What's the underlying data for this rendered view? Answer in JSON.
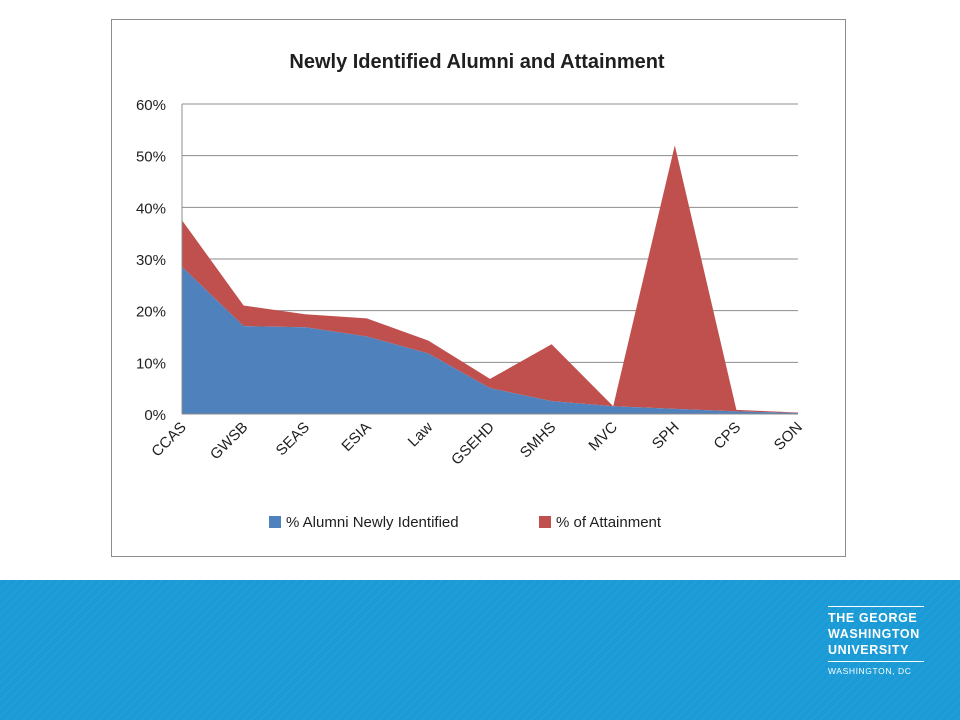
{
  "chart_data": {
    "type": "area",
    "title": "Newly Identified Alumni and Attainment",
    "xlabel": "",
    "ylabel": "",
    "categories": [
      "CCAS",
      "GWSB",
      "SEAS",
      "ESIA",
      "Law",
      "GSEHD",
      "SMHS",
      "MVC",
      "SPH",
      "CPS",
      "SON"
    ],
    "ylim": [
      0,
      60
    ],
    "yticks": [
      "0%",
      "10%",
      "20%",
      "30%",
      "40%",
      "50%",
      "60%"
    ],
    "stacked": true,
    "grid": true,
    "legend_position": "bottom",
    "series": [
      {
        "name": "% Alumni Newly Identified",
        "color": "#4f81bd",
        "values": [
          28.5,
          17.0,
          16.8,
          15.0,
          11.7,
          5.0,
          2.5,
          1.5,
          1.0,
          0.5,
          0.2
        ]
      },
      {
        "name": "% of Attainment",
        "color": "#c0504d",
        "values": [
          9.0,
          4.0,
          2.5,
          3.5,
          2.5,
          1.8,
          11.0,
          0.0,
          51.0,
          0.3,
          0.1
        ]
      }
    ]
  },
  "logo": {
    "line1": "THE GEORGE",
    "line2": "WASHINGTON",
    "line3": "UNIVERSITY",
    "sub": "WASHINGTON, DC"
  },
  "colors": {
    "footer_band": "#1a9ad6",
    "series_blue": "#4f81bd",
    "series_red": "#c0504d"
  }
}
